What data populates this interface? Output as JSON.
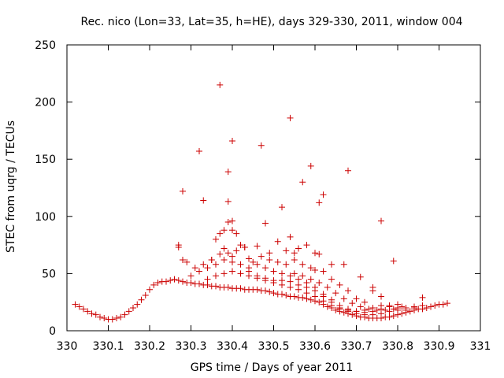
{
  "chart_data": {
    "type": "scatter",
    "title": "Rec. nico (Lon=33, Lat=35, h=HE), days 329-330, 2011, window 004",
    "xlabel": "GPS time / Days of year 2011",
    "ylabel": "STEC from uqrg / TECUs",
    "xlim": [
      330,
      331
    ],
    "ylim": [
      0,
      250
    ],
    "x_ticks": [
      "330",
      "330.1",
      "330.2",
      "330.3",
      "330.4",
      "330.5",
      "330.6",
      "330.7",
      "330.8",
      "330.9",
      "331"
    ],
    "y_ticks": [
      "0",
      "50",
      "100",
      "150",
      "200",
      "250"
    ],
    "grid": false,
    "legend": "none",
    "marker": "plus",
    "color": "#cc0000",
    "points": [
      [
        330.02,
        23
      ],
      [
        330.03,
        21
      ],
      [
        330.04,
        19
      ],
      [
        330.05,
        17
      ],
      [
        330.06,
        15
      ],
      [
        330.07,
        14
      ],
      [
        330.08,
        12
      ],
      [
        330.09,
        11
      ],
      [
        330.1,
        10
      ],
      [
        330.11,
        10
      ],
      [
        330.12,
        11
      ],
      [
        330.13,
        12
      ],
      [
        330.14,
        14
      ],
      [
        330.15,
        17
      ],
      [
        330.16,
        20
      ],
      [
        330.17,
        23
      ],
      [
        330.18,
        27
      ],
      [
        330.19,
        31
      ],
      [
        330.2,
        36
      ],
      [
        330.21,
        40
      ],
      [
        330.22,
        42
      ],
      [
        330.23,
        43
      ],
      [
        330.24,
        43
      ],
      [
        330.25,
        44
      ],
      [
        330.26,
        45
      ],
      [
        330.27,
        44
      ],
      [
        330.28,
        43
      ],
      [
        330.29,
        42
      ],
      [
        330.3,
        42
      ],
      [
        330.31,
        41
      ],
      [
        330.32,
        41
      ],
      [
        330.33,
        40
      ],
      [
        330.34,
        40
      ],
      [
        330.35,
        39
      ],
      [
        330.36,
        39
      ],
      [
        330.37,
        38
      ],
      [
        330.38,
        38
      ],
      [
        330.39,
        38
      ],
      [
        330.4,
        37
      ],
      [
        330.41,
        37
      ],
      [
        330.42,
        37
      ],
      [
        330.43,
        36
      ],
      [
        330.44,
        36
      ],
      [
        330.45,
        36
      ],
      [
        330.46,
        36
      ],
      [
        330.47,
        35
      ],
      [
        330.48,
        35
      ],
      [
        330.49,
        34
      ],
      [
        330.5,
        33
      ],
      [
        330.51,
        32
      ],
      [
        330.52,
        32
      ],
      [
        330.53,
        31
      ],
      [
        330.54,
        30
      ],
      [
        330.55,
        30
      ],
      [
        330.56,
        29
      ],
      [
        330.57,
        29
      ],
      [
        330.58,
        28
      ],
      [
        330.59,
        27
      ],
      [
        330.6,
        26
      ],
      [
        330.61,
        25
      ],
      [
        330.62,
        23
      ],
      [
        330.63,
        21
      ],
      [
        330.64,
        20
      ],
      [
        330.65,
        18
      ],
      [
        330.66,
        17
      ],
      [
        330.67,
        16
      ],
      [
        330.68,
        15
      ],
      [
        330.69,
        14
      ],
      [
        330.7,
        13
      ],
      [
        330.71,
        12
      ],
      [
        330.72,
        12
      ],
      [
        330.73,
        11
      ],
      [
        330.74,
        11
      ],
      [
        330.75,
        11
      ],
      [
        330.76,
        11
      ],
      [
        330.77,
        12
      ],
      [
        330.78,
        12
      ],
      [
        330.79,
        13
      ],
      [
        330.8,
        14
      ],
      [
        330.81,
        15
      ],
      [
        330.82,
        16
      ],
      [
        330.83,
        17
      ],
      [
        330.84,
        18
      ],
      [
        330.85,
        19
      ],
      [
        330.86,
        19
      ],
      [
        330.87,
        20
      ],
      [
        330.88,
        21
      ],
      [
        330.89,
        22
      ],
      [
        330.9,
        23
      ],
      [
        330.91,
        23
      ],
      [
        330.92,
        24
      ],
      [
        330.34,
        45
      ],
      [
        330.36,
        48
      ],
      [
        330.38,
        50
      ],
      [
        330.4,
        52
      ],
      [
        330.42,
        50
      ],
      [
        330.44,
        48
      ],
      [
        330.46,
        46
      ],
      [
        330.48,
        44
      ],
      [
        330.5,
        42
      ],
      [
        330.52,
        40
      ],
      [
        330.54,
        38
      ],
      [
        330.56,
        36
      ],
      [
        330.58,
        33
      ],
      [
        330.6,
        30
      ],
      [
        330.62,
        26
      ],
      [
        330.64,
        22
      ],
      [
        330.66,
        19
      ],
      [
        330.68,
        17
      ],
      [
        330.7,
        15
      ],
      [
        330.72,
        14
      ],
      [
        330.74,
        14
      ],
      [
        330.76,
        15
      ],
      [
        330.78,
        17
      ],
      [
        330.8,
        18
      ],
      [
        330.82,
        20
      ],
      [
        330.84,
        21
      ],
      [
        330.86,
        22
      ],
      [
        330.44,
        55
      ],
      [
        330.46,
        58
      ],
      [
        330.48,
        55
      ],
      [
        330.5,
        52
      ],
      [
        330.52,
        50
      ],
      [
        330.54,
        48
      ],
      [
        330.56,
        45
      ],
      [
        330.58,
        42
      ],
      [
        330.6,
        38
      ],
      [
        330.62,
        32
      ],
      [
        330.64,
        27
      ],
      [
        330.66,
        22
      ],
      [
        330.68,
        19
      ],
      [
        330.7,
        17
      ],
      [
        330.72,
        16
      ],
      [
        330.74,
        17
      ],
      [
        330.76,
        19
      ],
      [
        330.78,
        21
      ],
      [
        330.8,
        23
      ],
      [
        330.3,
        48
      ],
      [
        330.32,
        52
      ],
      [
        330.34,
        55
      ],
      [
        330.36,
        58
      ],
      [
        330.38,
        62
      ],
      [
        330.4,
        60
      ],
      [
        330.42,
        58
      ],
      [
        330.44,
        52
      ],
      [
        330.46,
        48
      ],
      [
        330.48,
        46
      ],
      [
        330.5,
        44
      ],
      [
        330.52,
        44
      ],
      [
        330.54,
        43
      ],
      [
        330.56,
        40
      ],
      [
        330.58,
        38
      ],
      [
        330.6,
        35
      ],
      [
        330.62,
        30
      ],
      [
        330.64,
        25
      ],
      [
        330.66,
        20
      ],
      [
        330.68,
        18
      ],
      [
        330.7,
        17
      ],
      [
        330.72,
        18
      ],
      [
        330.74,
        20
      ],
      [
        330.76,
        22
      ],
      [
        330.55,
        50
      ],
      [
        330.57,
        48
      ],
      [
        330.59,
        45
      ],
      [
        330.61,
        42
      ],
      [
        330.63,
        38
      ],
      [
        330.65,
        33
      ],
      [
        330.67,
        28
      ],
      [
        330.69,
        24
      ],
      [
        330.71,
        21
      ],
      [
        330.73,
        19
      ],
      [
        330.75,
        18
      ],
      [
        330.77,
        18
      ],
      [
        330.79,
        19
      ],
      [
        330.81,
        21
      ],
      [
        330.27,
        73
      ],
      [
        330.27,
        75
      ],
      [
        330.28,
        62
      ],
      [
        330.29,
        60
      ],
      [
        330.31,
        55
      ],
      [
        330.33,
        58
      ],
      [
        330.35,
        62
      ],
      [
        330.37,
        67
      ],
      [
        330.38,
        72
      ],
      [
        330.39,
        68
      ],
      [
        330.4,
        65
      ],
      [
        330.41,
        70
      ],
      [
        330.42,
        75
      ],
      [
        330.44,
        63
      ],
      [
        330.45,
        60
      ],
      [
        330.47,
        65
      ],
      [
        330.49,
        62
      ],
      [
        330.51,
        60
      ],
      [
        330.53,
        58
      ],
      [
        330.55,
        62
      ],
      [
        330.57,
        58
      ],
      [
        330.59,
        55
      ],
      [
        330.6,
        53
      ],
      [
        330.62,
        52
      ],
      [
        330.64,
        45
      ],
      [
        330.66,
        40
      ],
      [
        330.68,
        35
      ],
      [
        330.7,
        28
      ],
      [
        330.72,
        25
      ],
      [
        330.74,
        35
      ],
      [
        330.76,
        30
      ],
      [
        330.78,
        22
      ],
      [
        330.8,
        20
      ],
      [
        330.82,
        18
      ],
      [
        330.84,
        20
      ],
      [
        330.86,
        29
      ],
      [
        330.35,
        62
      ],
      [
        330.36,
        80
      ],
      [
        330.37,
        85
      ],
      [
        330.38,
        88
      ],
      [
        330.39,
        95
      ],
      [
        330.4,
        88
      ],
      [
        330.41,
        85
      ],
      [
        330.43,
        73
      ],
      [
        330.46,
        74
      ],
      [
        330.49,
        68
      ],
      [
        330.51,
        78
      ],
      [
        330.53,
        70
      ],
      [
        330.55,
        68
      ],
      [
        330.56,
        72
      ],
      [
        330.58,
        75
      ],
      [
        330.6,
        68
      ],
      [
        330.61,
        67
      ],
      [
        330.64,
        58
      ],
      [
        330.67,
        58
      ],
      [
        330.71,
        47
      ],
      [
        330.74,
        38
      ],
      [
        330.28,
        122
      ],
      [
        330.32,
        157
      ],
      [
        330.33,
        114
      ],
      [
        330.37,
        215
      ],
      [
        330.39,
        139
      ],
      [
        330.39,
        113
      ],
      [
        330.4,
        96
      ],
      [
        330.4,
        166
      ],
      [
        330.43,
        73
      ],
      [
        330.47,
        162
      ],
      [
        330.48,
        94
      ],
      [
        330.52,
        108
      ],
      [
        330.54,
        186
      ],
      [
        330.54,
        82
      ],
      [
        330.57,
        130
      ],
      [
        330.59,
        144
      ],
      [
        330.61,
        112
      ],
      [
        330.62,
        119
      ],
      [
        330.68,
        140
      ],
      [
        330.76,
        96
      ],
      [
        330.79,
        61
      ]
    ]
  }
}
